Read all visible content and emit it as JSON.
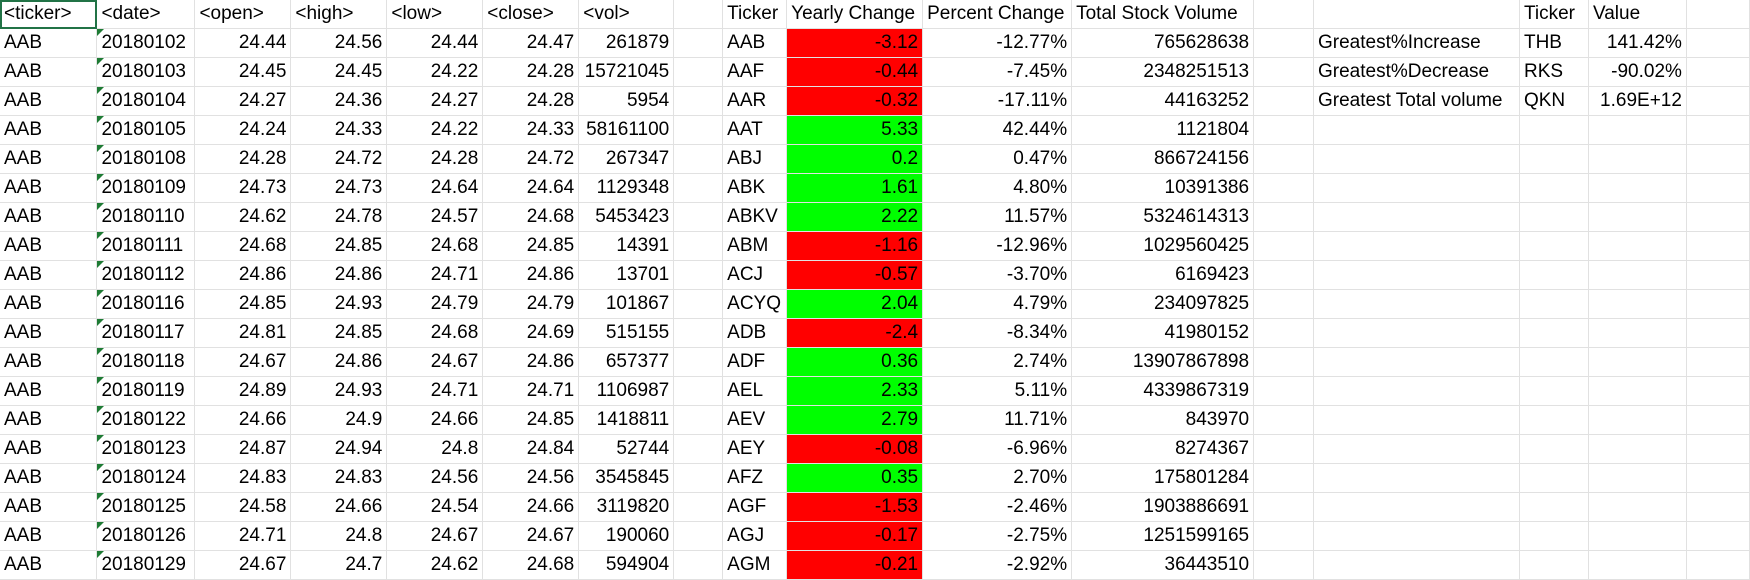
{
  "colors": {
    "positive": "#00ff00",
    "negative": "#ff0000",
    "selection": "#217346",
    "gridline": "#e1e1e1"
  },
  "columns": [
    "<ticker>",
    "<date>",
    "<open>",
    "<high>",
    "<low>",
    "<close>",
    "<vol>",
    "",
    "Ticker",
    "Yearly Change",
    "Percent Change",
    "Total Stock Volume",
    "",
    "",
    "Ticker",
    "Value",
    ""
  ],
  "rows": [
    {
      "ticker": "AAB",
      "date": "20180102",
      "open": "24.44",
      "high": "24.56",
      "low": "24.44",
      "close": "24.47",
      "vol": "261879",
      "sum_ticker": "AAB",
      "yearly_change": "-3.12",
      "percent_change": "-12.77%",
      "total_volume": "765628638",
      "summary_label": "Greatest%Increase",
      "summary_ticker": "THB",
      "summary_value": "141.42%"
    },
    {
      "ticker": "AAB",
      "date": "20180103",
      "open": "24.45",
      "high": "24.45",
      "low": "24.22",
      "close": "24.28",
      "vol": "15721045",
      "sum_ticker": "AAF",
      "yearly_change": "-0.44",
      "percent_change": "-7.45%",
      "total_volume": "2348251513",
      "summary_label": "Greatest%Decrease",
      "summary_ticker": "RKS",
      "summary_value": "-90.02%"
    },
    {
      "ticker": "AAB",
      "date": "20180104",
      "open": "24.27",
      "high": "24.36",
      "low": "24.27",
      "close": "24.28",
      "vol": "5954",
      "sum_ticker": "AAR",
      "yearly_change": "-0.32",
      "percent_change": "-17.11%",
      "total_volume": "44163252",
      "summary_label": "Greatest Total volume",
      "summary_ticker": "QKN",
      "summary_value": "1.69E+12"
    },
    {
      "ticker": "AAB",
      "date": "20180105",
      "open": "24.24",
      "high": "24.33",
      "low": "24.22",
      "close": "24.33",
      "vol": "58161100",
      "sum_ticker": "AAT",
      "yearly_change": "5.33",
      "percent_change": "42.44%",
      "total_volume": "1121804",
      "summary_label": "",
      "summary_ticker": "",
      "summary_value": ""
    },
    {
      "ticker": "AAB",
      "date": "20180108",
      "open": "24.28",
      "high": "24.72",
      "low": "24.28",
      "close": "24.72",
      "vol": "267347",
      "sum_ticker": "ABJ",
      "yearly_change": "0.2",
      "percent_change": "0.47%",
      "total_volume": "866724156",
      "summary_label": "",
      "summary_ticker": "",
      "summary_value": ""
    },
    {
      "ticker": "AAB",
      "date": "20180109",
      "open": "24.73",
      "high": "24.73",
      "low": "24.64",
      "close": "24.64",
      "vol": "1129348",
      "sum_ticker": "ABK",
      "yearly_change": "1.61",
      "percent_change": "4.80%",
      "total_volume": "10391386",
      "summary_label": "",
      "summary_ticker": "",
      "summary_value": ""
    },
    {
      "ticker": "AAB",
      "date": "20180110",
      "open": "24.62",
      "high": "24.78",
      "low": "24.57",
      "close": "24.68",
      "vol": "5453423",
      "sum_ticker": "ABKV",
      "yearly_change": "2.22",
      "percent_change": "11.57%",
      "total_volume": "5324614313",
      "summary_label": "",
      "summary_ticker": "",
      "summary_value": ""
    },
    {
      "ticker": "AAB",
      "date": "20180111",
      "open": "24.68",
      "high": "24.85",
      "low": "24.68",
      "close": "24.85",
      "vol": "14391",
      "sum_ticker": "ABM",
      "yearly_change": "-1.16",
      "percent_change": "-12.96%",
      "total_volume": "1029560425",
      "summary_label": "",
      "summary_ticker": "",
      "summary_value": ""
    },
    {
      "ticker": "AAB",
      "date": "20180112",
      "open": "24.86",
      "high": "24.86",
      "low": "24.71",
      "close": "24.86",
      "vol": "13701",
      "sum_ticker": "ACJ",
      "yearly_change": "-0.57",
      "percent_change": "-3.70%",
      "total_volume": "6169423",
      "summary_label": "",
      "summary_ticker": "",
      "summary_value": ""
    },
    {
      "ticker": "AAB",
      "date": "20180116",
      "open": "24.85",
      "high": "24.93",
      "low": "24.79",
      "close": "24.79",
      "vol": "101867",
      "sum_ticker": "ACYQ",
      "yearly_change": "2.04",
      "percent_change": "4.79%",
      "total_volume": "234097825",
      "summary_label": "",
      "summary_ticker": "",
      "summary_value": ""
    },
    {
      "ticker": "AAB",
      "date": "20180117",
      "open": "24.81",
      "high": "24.85",
      "low": "24.68",
      "close": "24.69",
      "vol": "515155",
      "sum_ticker": "ADB",
      "yearly_change": "-2.4",
      "percent_change": "-8.34%",
      "total_volume": "41980152",
      "summary_label": "",
      "summary_ticker": "",
      "summary_value": ""
    },
    {
      "ticker": "AAB",
      "date": "20180118",
      "open": "24.67",
      "high": "24.86",
      "low": "24.67",
      "close": "24.86",
      "vol": "657377",
      "sum_ticker": "ADF",
      "yearly_change": "0.36",
      "percent_change": "2.74%",
      "total_volume": "13907867898",
      "summary_label": "",
      "summary_ticker": "",
      "summary_value": ""
    },
    {
      "ticker": "AAB",
      "date": "20180119",
      "open": "24.89",
      "high": "24.93",
      "low": "24.71",
      "close": "24.71",
      "vol": "1106987",
      "sum_ticker": "AEL",
      "yearly_change": "2.33",
      "percent_change": "5.11%",
      "total_volume": "4339867319",
      "summary_label": "",
      "summary_ticker": "",
      "summary_value": ""
    },
    {
      "ticker": "AAB",
      "date": "20180122",
      "open": "24.66",
      "high": "24.9",
      "low": "24.66",
      "close": "24.85",
      "vol": "1418811",
      "sum_ticker": "AEV",
      "yearly_change": "2.79",
      "percent_change": "11.71%",
      "total_volume": "843970",
      "summary_label": "",
      "summary_ticker": "",
      "summary_value": ""
    },
    {
      "ticker": "AAB",
      "date": "20180123",
      "open": "24.87",
      "high": "24.94",
      "low": "24.8",
      "close": "24.84",
      "vol": "52744",
      "sum_ticker": "AEY",
      "yearly_change": "-0.08",
      "percent_change": "-6.96%",
      "total_volume": "8274367",
      "summary_label": "",
      "summary_ticker": "",
      "summary_value": ""
    },
    {
      "ticker": "AAB",
      "date": "20180124",
      "open": "24.83",
      "high": "24.83",
      "low": "24.56",
      "close": "24.56",
      "vol": "3545845",
      "sum_ticker": "AFZ",
      "yearly_change": "0.35",
      "percent_change": "2.70%",
      "total_volume": "175801284",
      "summary_label": "",
      "summary_ticker": "",
      "summary_value": ""
    },
    {
      "ticker": "AAB",
      "date": "20180125",
      "open": "24.58",
      "high": "24.66",
      "low": "24.54",
      "close": "24.66",
      "vol": "3119820",
      "sum_ticker": "AGF",
      "yearly_change": "-1.53",
      "percent_change": "-2.46%",
      "total_volume": "1903886691",
      "summary_label": "",
      "summary_ticker": "",
      "summary_value": ""
    },
    {
      "ticker": "AAB",
      "date": "20180126",
      "open": "24.71",
      "high": "24.8",
      "low": "24.67",
      "close": "24.67",
      "vol": "190060",
      "sum_ticker": "AGJ",
      "yearly_change": "-0.17",
      "percent_change": "-2.75%",
      "total_volume": "1251599165",
      "summary_label": "",
      "summary_ticker": "",
      "summary_value": ""
    },
    {
      "ticker": "AAB",
      "date": "20180129",
      "open": "24.67",
      "high": "24.7",
      "low": "24.62",
      "close": "24.68",
      "vol": "594904",
      "sum_ticker": "AGM",
      "yearly_change": "-0.21",
      "percent_change": "-2.92%",
      "total_volume": "36443510",
      "summary_label": "",
      "summary_ticker": "",
      "summary_value": ""
    }
  ]
}
